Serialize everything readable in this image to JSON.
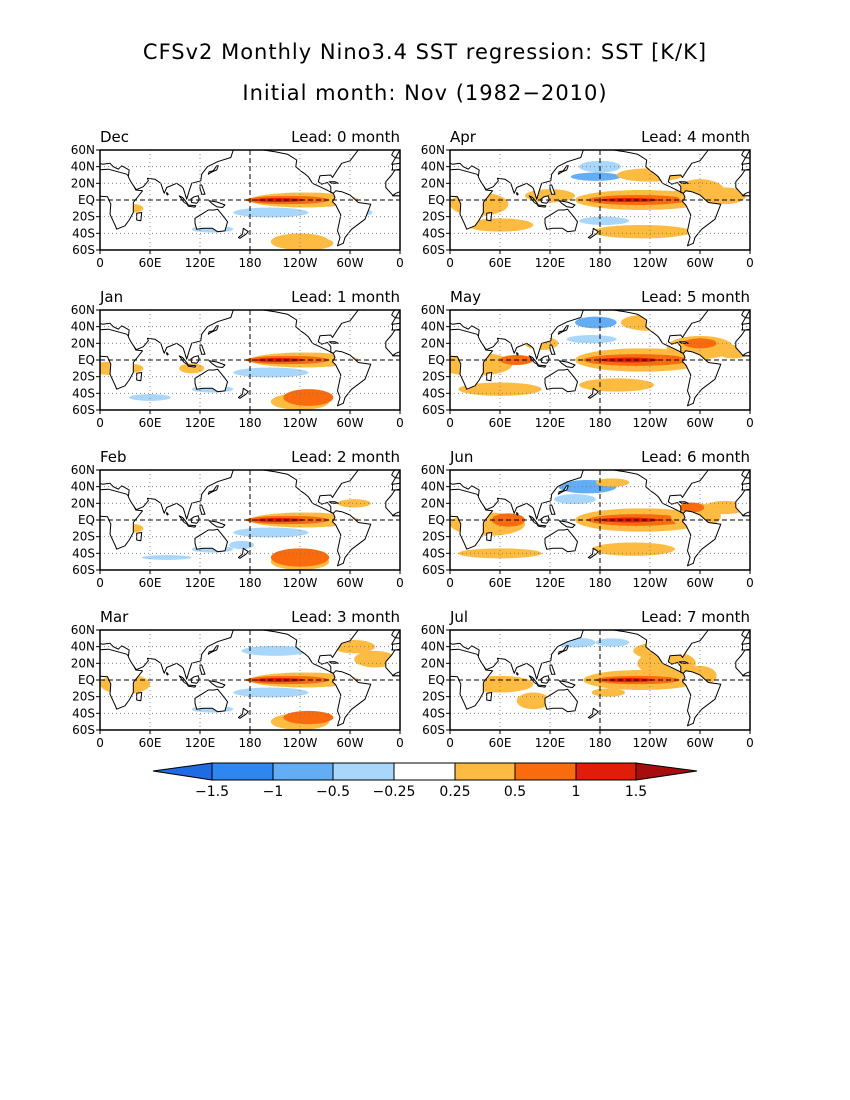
{
  "title_line1": "CFSv2 Monthly Nino3.4 SST regression: SST [K/K]",
  "title_line2": "Initial month: Nov (1982−2010)",
  "colors": {
    "lt_-1.5": "#1f6be3",
    "-1.5_-1": "#2e86f0",
    "-1_-0.5": "#63adf5",
    "-0.5_-0.25": "#a9d7fb",
    "-0.25_0.25": "#ffffff",
    "0.25_0.5": "#fdbb41",
    "0.5_1": "#fa6b0e",
    "1_1.5": "#e01d08",
    "gt_1.5": "#a70d0d",
    "land_outline": "#000000"
  },
  "panels": [
    {
      "month": "Dec",
      "lead": "Lead: 0 month"
    },
    {
      "month": "Apr",
      "lead": "Lead: 4 month"
    },
    {
      "month": "Jan",
      "lead": "Lead: 1 month"
    },
    {
      "month": "May",
      "lead": "Lead: 5 month"
    },
    {
      "month": "Feb",
      "lead": "Lead: 2 month"
    },
    {
      "month": "Jun",
      "lead": "Lead: 6 month"
    },
    {
      "month": "Mar",
      "lead": "Lead: 3 month"
    },
    {
      "month": "Jul",
      "lead": "Lead: 7 month"
    }
  ],
  "lat_labels": [
    "60N",
    "40N",
    "20N",
    "EQ",
    "20S",
    "40S",
    "60S"
  ],
  "lon_labels": [
    "0",
    "60E",
    "120E",
    "180",
    "120W",
    "60W",
    "0"
  ],
  "colorbar": {
    "labels": [
      "−1.5",
      "−1",
      "−0.5",
      "−0.25",
      "0.25",
      "0.5",
      "1",
      "1.5"
    ],
    "levels": [
      -1.5,
      -1,
      -0.5,
      -0.25,
      0.25,
      0.5,
      1,
      1.5
    ]
  }
}
